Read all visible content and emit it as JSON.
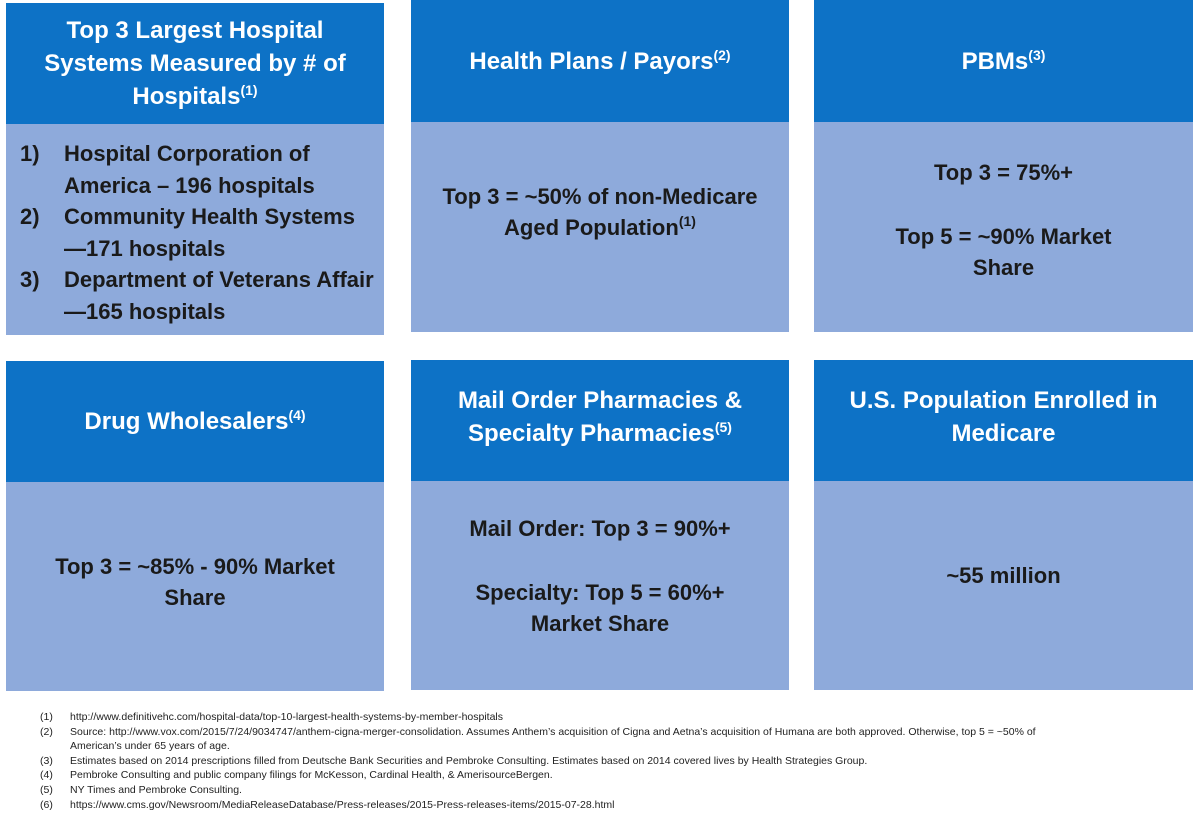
{
  "panels": {
    "hospitals": {
      "title": "Top 3 Largest Hospital Systems Measured by # of Hospitals",
      "title_sup": "(1)",
      "items": [
        {
          "num": "1)",
          "text": "Hospital Corporation of America – 196  hospitals"
        },
        {
          "num": "2)",
          "text": "Community Health Systems—171 hospitals"
        },
        {
          "num": "3)",
          "text": "Department of Veterans Affair—165 hospitals"
        }
      ]
    },
    "health_plans": {
      "title": "Health Plans / Payors",
      "title_sup": "(2)",
      "body": "Top 3 = ~50% of non-Medicare Aged Population",
      "body_sup": "(1)"
    },
    "pbms": {
      "title": "PBMs",
      "title_sup": "(3)",
      "line1": "Top 3 = 75%+",
      "line2": "Top 5 = ~90% Market Share"
    },
    "wholesalers": {
      "title": "Drug Wholesalers",
      "title_sup": "(4)",
      "body": "Top 3 = ~85% - 90% Market Share"
    },
    "pharmacies": {
      "title": "Mail Order Pharmacies & Specialty Pharmacies",
      "title_sup": "(5)",
      "line1": "Mail Order: Top 3 = 90%+",
      "line2": "Specialty: Top 5 = 60%+ Market Share"
    },
    "medicare": {
      "title": "U.S. Population Enrolled in Medicare",
      "body": "~55 million"
    }
  },
  "footnotes": [
    {
      "n": "(1)",
      "text": "http://www.definitivehc.com/hospital-data/top-10-largest-health-systems-by-member-hospitals"
    },
    {
      "n": "(2)",
      "text": "Source: http://www.vox.com/2015/7/24/9034747/anthem-cigna-merger-consolidation.  Assumes Anthem’s acquisition of Cigna and Aetna’s acquisition of Humana are both approved.  Otherwise, top 5 = ~50% of American’s under 65 years of age."
    },
    {
      "n": "(3)",
      "text": "Estimates based on 2014 prescriptions filled from Deutsche Bank Securities and Pembroke Consulting.  Estimates based on 2014 covered lives by Health Strategies Group."
    },
    {
      "n": "(4)",
      "text": "Pembroke Consulting and public company filings for McKesson, Cardinal Health, & AmerisourceBergen."
    },
    {
      "n": "(5)",
      "text": "NY Times and Pembroke Consulting."
    },
    {
      "n": "(6)",
      "text": "https://www.cms.gov/Newsroom/MediaReleaseDatabase/Press-releases/2015-Press-releases-items/2015-07-28.html"
    }
  ],
  "colors": {
    "header": "#0d72c6",
    "body": "#8eaadb"
  }
}
